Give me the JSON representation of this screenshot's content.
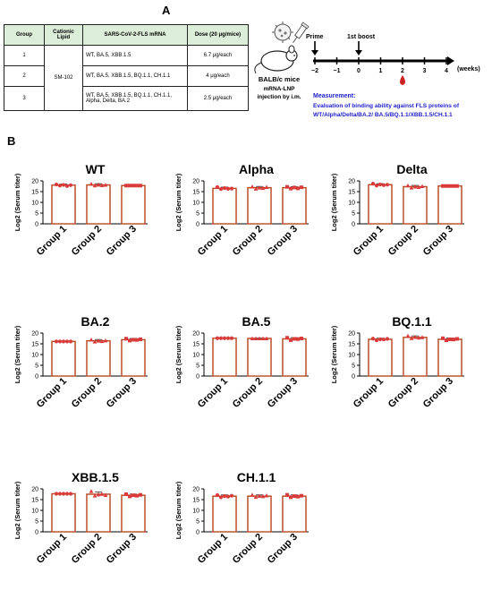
{
  "panel_a_label": "A",
  "panel_b_label": "B",
  "table": {
    "headers": [
      "Group",
      "Cationic Lipid",
      "SARS-CoV-2-FLS mRNA",
      "Dose (20 μg/mice)"
    ],
    "lipid": "SM-102",
    "rows": [
      {
        "group": "1",
        "mrna": "WT, BA.5, XBB.1.5",
        "dose": "6.7 μg/each"
      },
      {
        "group": "2",
        "mrna": "WT, BA.5, XBB.1.5, BQ.1.1, CH.1.1",
        "dose": "4 μg/each"
      },
      {
        "group": "3",
        "mrna": "WT, BA.5, XBB.1.5, BQ.1.1, CH.1.1, Alpha, Delta, BA.2",
        "dose": "2.5 μg/each"
      }
    ]
  },
  "schema": {
    "prime_label": "Prime",
    "boost_label": "1st boost",
    "ticks": [
      "−2",
      "−1",
      "0",
      "1",
      "2",
      "3",
      "4"
    ],
    "unit_label": "(weeks)",
    "mouse_label": "BALB/c mice",
    "injection_label_1": "mRNA-LNP",
    "injection_label_2": "injection by i.m.",
    "measurement_title": "Measurement:",
    "measurement_line1": "Evaluation of binding ability against FLS proteins of",
    "measurement_line2": "WT/Alpha/Delta/BA.2/ BA.5/BQ.1.1/XBB.1.5/CH.1.1",
    "colors": {
      "measurement": "#2222cc",
      "drop": "#cc2222"
    }
  },
  "chart_data": [
    {
      "type": "bar",
      "title": "WT",
      "ylabel": "Log2 (Serum titer)",
      "ylim": [
        0,
        20
      ],
      "yticks": [
        0,
        5,
        10,
        15,
        20
      ],
      "categories": [
        "Group 1",
        "Group 2",
        "Group 3"
      ],
      "values": [
        18.0,
        18.1,
        17.8
      ],
      "points": [
        [
          18.3,
          17.8,
          18.1,
          17.6,
          18.0
        ],
        [
          18.6,
          17.8,
          18.2,
          17.9,
          18.1
        ],
        [
          17.8,
          17.8,
          17.8,
          17.8,
          17.8
        ]
      ],
      "errors": [
        0.5,
        0.6,
        0.1
      ]
    },
    {
      "type": "bar",
      "title": "Alpha",
      "ylabel": "Log2 (Serum titer)",
      "ylim": [
        0,
        20
      ],
      "yticks": [
        0,
        5,
        10,
        15,
        20
      ],
      "categories": [
        "Group 1",
        "Group 2",
        "Group 3"
      ],
      "values": [
        16.5,
        16.8,
        16.8
      ],
      "points": [
        [
          17.1,
          16.2,
          16.6,
          16.3,
          16.4
        ],
        [
          17.3,
          16.3,
          16.8,
          16.6,
          17.1
        ],
        [
          17.2,
          16.4,
          16.9,
          16.5,
          17.0
        ]
      ],
      "errors": [
        0.6,
        0.6,
        0.5
      ]
    },
    {
      "type": "bar",
      "title": "Delta",
      "ylabel": "Log2 (Serum titer)",
      "ylim": [
        0,
        20
      ],
      "yticks": [
        0,
        5,
        10,
        15,
        20
      ],
      "categories": [
        "Group 1",
        "Group 2",
        "Group 3"
      ],
      "values": [
        18.2,
        17.3,
        17.6
      ],
      "points": [
        [
          18.7,
          17.8,
          18.3,
          18.0,
          18.2
        ],
        [
          17.8,
          16.8,
          17.3,
          17.1,
          17.5
        ],
        [
          17.6,
          17.6,
          17.6,
          17.6,
          17.6
        ]
      ],
      "errors": [
        0.5,
        0.6,
        0.1
      ]
    },
    {
      "type": "bar",
      "title": "BA.2",
      "ylabel": "Log2 (Serum titer)",
      "ylim": [
        0,
        20
      ],
      "yticks": [
        0,
        5,
        10,
        15,
        20
      ],
      "categories": [
        "Group 1",
        "Group 2",
        "Group 3"
      ],
      "values": [
        16.1,
        16.4,
        16.9
      ],
      "points": [
        [
          16.1,
          16.1,
          16.1,
          16.1,
          16.1
        ],
        [
          16.9,
          16.0,
          16.4,
          16.2,
          16.5
        ],
        [
          17.4,
          16.5,
          16.9,
          16.8,
          17.1
        ]
      ],
      "errors": [
        0.1,
        0.6,
        0.6
      ]
    },
    {
      "type": "bar",
      "title": "BA.5",
      "ylabel": "Log2 (Serum titer)",
      "ylim": [
        0,
        20
      ],
      "yticks": [
        0,
        5,
        10,
        15,
        20
      ],
      "categories": [
        "Group 1",
        "Group 2",
        "Group 3"
      ],
      "values": [
        17.6,
        17.5,
        17.3
      ],
      "points": [
        [
          17.6,
          17.6,
          17.6,
          17.6,
          17.6
        ],
        [
          17.5,
          17.5,
          17.5,
          17.5,
          17.5
        ],
        [
          17.8,
          16.7,
          17.3,
          17.2,
          17.5
        ]
      ],
      "errors": [
        0.1,
        0.1,
        0.6
      ]
    },
    {
      "type": "bar",
      "title": "BQ.1.1",
      "ylabel": "Log2 (Serum titer)",
      "ylim": [
        0,
        20
      ],
      "yticks": [
        0,
        5,
        10,
        15,
        20
      ],
      "categories": [
        "Group 1",
        "Group 2",
        "Group 3"
      ],
      "values": [
        17.1,
        18.0,
        17.1
      ],
      "points": [
        [
          17.4,
          16.6,
          17.1,
          17.0,
          17.3
        ],
        [
          18.7,
          17.6,
          18.1,
          17.8,
          18.0
        ],
        [
          17.6,
          16.6,
          17.1,
          17.0,
          17.3
        ]
      ],
      "errors": [
        0.5,
        0.7,
        0.6
      ]
    },
    {
      "type": "bar",
      "title": "XBB.1.5",
      "ylabel": "Log2 (Serum titer)",
      "ylim": [
        0,
        20
      ],
      "yticks": [
        0,
        5,
        10,
        15,
        20
      ],
      "categories": [
        "Group 1",
        "Group 2",
        "Group 3"
      ],
      "values": [
        17.7,
        17.5,
        17.0
      ],
      "points": [
        [
          17.7,
          17.7,
          17.7,
          17.7,
          17.7
        ],
        [
          18.9,
          16.8,
          17.4,
          17.6,
          17.1
        ],
        [
          17.5,
          16.5,
          17.0,
          16.8,
          17.2
        ]
      ],
      "errors": [
        0.1,
        1.1,
        0.6
      ]
    },
    {
      "type": "bar",
      "title": "CH.1.1",
      "ylabel": "Log2 (Serum titer)",
      "ylim": [
        0,
        20
      ],
      "yticks": [
        0,
        5,
        10,
        15,
        20
      ],
      "categories": [
        "Group 1",
        "Group 2",
        "Group 3"
      ],
      "values": [
        16.6,
        16.6,
        16.6
      ],
      "points": [
        [
          17.1,
          16.1,
          16.6,
          16.4,
          16.8
        ],
        [
          17.2,
          16.2,
          16.7,
          16.5,
          16.9
        ],
        [
          17.2,
          16.1,
          16.6,
          16.4,
          16.8
        ]
      ],
      "errors": [
        0.6,
        0.6,
        0.6
      ]
    }
  ],
  "colors": {
    "bar_edge": "#b8491e",
    "bar_shadow": "#f4cfe9",
    "point": "#d93b3b",
    "axis": "#000000"
  }
}
